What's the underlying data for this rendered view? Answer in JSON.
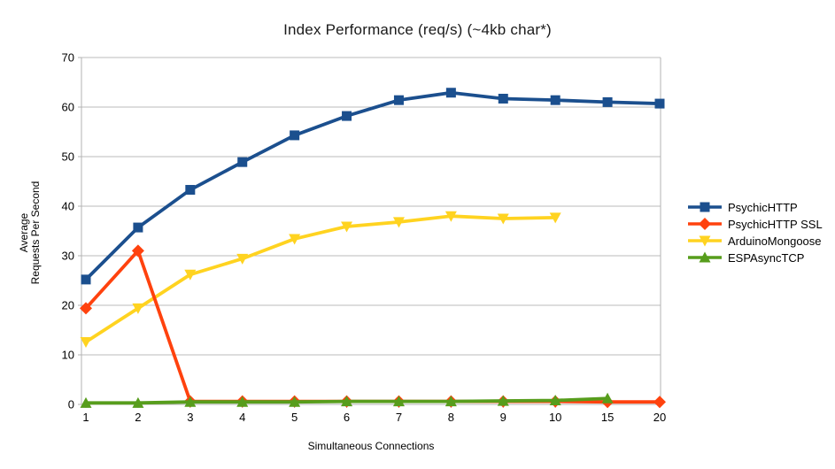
{
  "chart_data": {
    "type": "line",
    "title": "Index Performance (req/s) (~4kb char*)",
    "xlabel": "Simultaneous Connections",
    "ylabel_lines": [
      "Average",
      "Requests Per Second"
    ],
    "categories": [
      "1",
      "2",
      "3",
      "4",
      "5",
      "6",
      "7",
      "8",
      "9",
      "10",
      "15",
      "20"
    ],
    "ylim": [
      0,
      70
    ],
    "ytick_step": 10,
    "grid": "horizontal-only",
    "legend_position": "right",
    "series": [
      {
        "name": "PsychicHTTP",
        "color": "#1b4f8e",
        "marker": "square",
        "values": [
          25.2,
          35.7,
          43.3,
          48.9,
          54.3,
          58.2,
          61.4,
          62.9,
          61.7,
          61.4,
          61.0,
          60.7
        ]
      },
      {
        "name": "PsychicHTTP SSL",
        "color": "#ff420e",
        "marker": "diamond",
        "values": [
          19.4,
          31.0,
          0.6,
          0.6,
          0.6,
          0.6,
          0.6,
          0.6,
          0.6,
          0.6,
          0.5,
          0.5
        ]
      },
      {
        "name": "ArduinoMongoose",
        "color": "#ffd320",
        "marker": "triangle-down",
        "values": [
          12.6,
          19.4,
          26.2,
          29.4,
          33.4,
          35.9,
          36.8,
          38.0,
          37.5,
          37.7,
          null,
          null
        ]
      },
      {
        "name": "ESPAsyncTCP",
        "color": "#579d1c",
        "marker": "triangle-up",
        "values": [
          0.3,
          0.3,
          0.5,
          0.5,
          0.5,
          0.6,
          0.6,
          0.6,
          0.7,
          0.8,
          1.2,
          null
        ]
      }
    ],
    "draw_order": [
      0,
      2,
      1,
      3
    ],
    "colors": {
      "grid": "#bbbbbb",
      "axis": "#b3b3b3",
      "text": "#000000",
      "background": "#ffffff"
    }
  }
}
